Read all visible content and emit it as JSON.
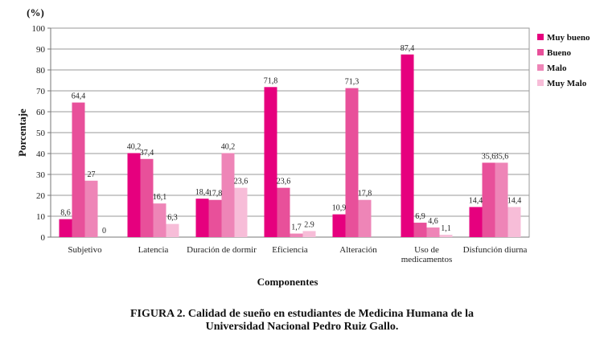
{
  "chart_data": {
    "type": "bar",
    "unit_label": "(%)",
    "ylabel": "Porcentaje",
    "xlabel": "Componentes",
    "ylim": [
      0,
      100
    ],
    "y_ticks": [
      "0",
      "10",
      "20",
      "30",
      "40",
      "50",
      "60",
      "70",
      "80",
      "90",
      "100"
    ],
    "grid": true,
    "legend_position": "right",
    "categories": [
      "Subjetivo",
      "Latencia",
      "Duración de dormir",
      "Eficiencia",
      "Alteración",
      "Uso de medicamentos",
      "Disfunción diurna"
    ],
    "category_lines": [
      [
        "Subjetivo"
      ],
      [
        "Latencia"
      ],
      [
        "Duración de dormir"
      ],
      [
        "Eficiencia"
      ],
      [
        "Alteración"
      ],
      [
        "Uso de",
        "medicamentos"
      ],
      [
        "Disfunción diurna"
      ]
    ],
    "series": [
      {
        "name": "Muy bueno",
        "color": "#e6007e",
        "values": [
          8.6,
          40.2,
          18.4,
          71.8,
          10.9,
          87.4,
          14.4
        ],
        "labels": [
          "8,6",
          "40,2",
          "18,4",
          "71,8",
          "10,9",
          "87,4",
          "14,4"
        ]
      },
      {
        "name": "Bueno",
        "color": "#e8509a",
        "values": [
          64.4,
          37.4,
          17.8,
          23.6,
          71.3,
          6.9,
          35.6
        ],
        "labels": [
          "64,4",
          "37,4",
          "17,8",
          "23,6",
          "71,3",
          "6,9",
          "35,6"
        ]
      },
      {
        "name": "Malo",
        "color": "#ee85b7",
        "values": [
          27,
          16.1,
          40.2,
          1.7,
          17.8,
          4.6,
          35.6
        ],
        "labels": [
          "27",
          "16,1",
          "40,2",
          "1,7",
          "17,8",
          "4,6",
          "35,6"
        ]
      },
      {
        "name": "Muy Malo",
        "color": "#f7bdd8",
        "values": [
          0,
          6.3,
          23.6,
          2.9,
          null,
          1.1,
          14.4
        ],
        "labels": [
          "0",
          "6,3",
          "23,6",
          "2.9",
          "",
          "1,1",
          "14,4"
        ]
      }
    ]
  },
  "caption": {
    "line1": "FIGURA 2. Calidad de sueño en estudiantes de Medicina Humana de la",
    "line2": "Universidad Nacional Pedro Ruiz Gallo."
  }
}
